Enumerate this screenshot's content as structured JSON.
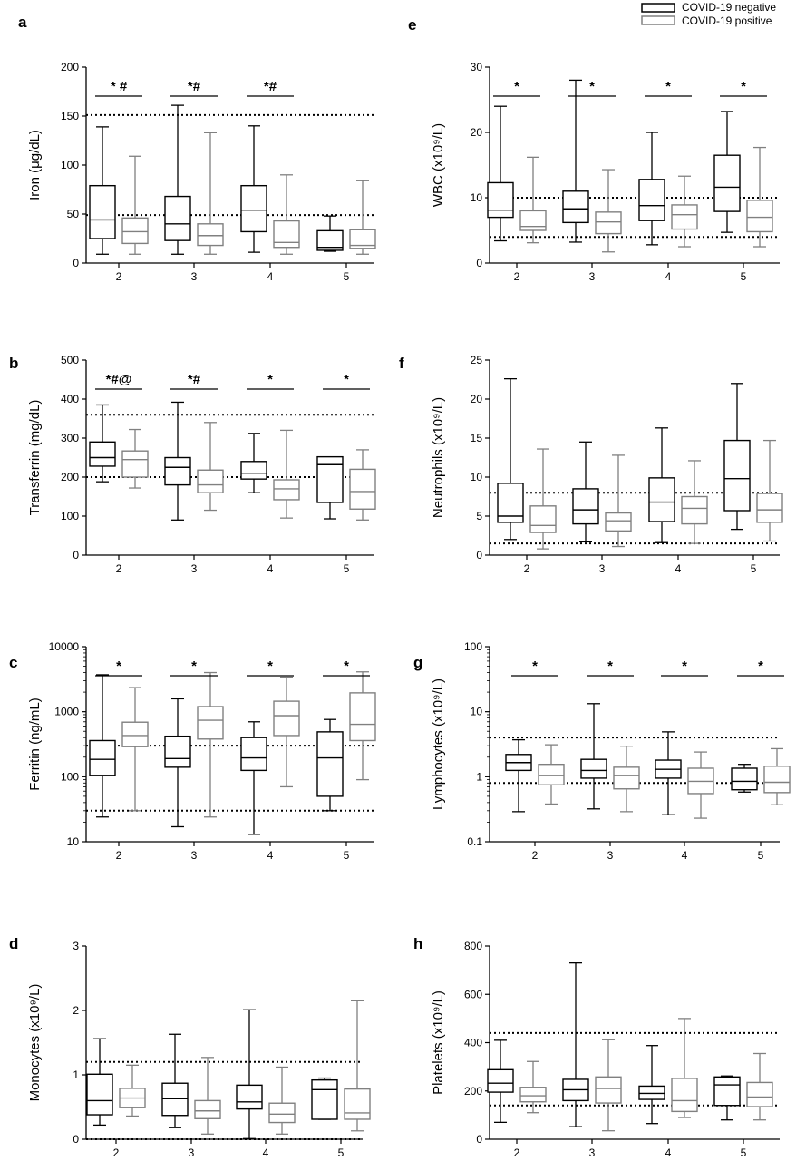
{
  "legend": {
    "entries": [
      {
        "name": "COVID-19 negative",
        "color": "#000000"
      },
      {
        "name": "COVID-19 positive",
        "color": "#808080"
      }
    ],
    "placement": "top-right"
  },
  "chart_data": [
    {
      "panel": "a",
      "type": "box",
      "ylabel": "Iron (μg/dL)",
      "categories": [
        "2",
        "3",
        "4",
        "5"
      ],
      "ylim": [
        0,
        200
      ],
      "yticks": [
        0,
        50,
        100,
        150,
        200
      ],
      "log": false,
      "ref_lines": [
        151,
        49
      ],
      "series": [
        {
          "name": "COVID-19 negative",
          "boxes": [
            [
              9,
              25,
              44,
              79,
              139
            ],
            [
              9,
              23,
              40,
              68,
              161
            ],
            [
              11,
              32,
              54,
              79,
              140
            ],
            [
              12,
              13,
              16,
              33,
              48
            ]
          ]
        },
        {
          "name": "COVID-19 positive",
          "boxes": [
            [
              9,
              20,
              32,
              46,
              109
            ],
            [
              9,
              18,
              28,
              40,
              133
            ],
            [
              9,
              16,
              21,
              43,
              90
            ],
            [
              9,
              15,
              18,
              34,
              84
            ]
          ]
        }
      ],
      "annotations": [
        "* #",
        "*#",
        "*#",
        ""
      ]
    },
    {
      "panel": "b",
      "type": "box",
      "ylabel": "Transferrin (mg/dL)",
      "categories": [
        "2",
        "3",
        "4",
        "5"
      ],
      "ylim": [
        0,
        500
      ],
      "yticks": [
        0,
        100,
        200,
        300,
        400,
        500
      ],
      "log": false,
      "ref_lines": [
        360,
        200
      ],
      "series": [
        {
          "name": "COVID-19 negative",
          "boxes": [
            [
              188,
              228,
              250,
              290,
              385
            ],
            [
              90,
              180,
              225,
              250,
              392
            ],
            [
              160,
              195,
              210,
              240,
              312
            ],
            [
              93,
              135,
              232,
              252,
              252
            ]
          ]
        },
        {
          "name": "COVID-19 positive",
          "boxes": [
            [
              172,
              200,
              245,
              267,
              322
            ],
            [
              115,
              160,
              180,
              218,
              340
            ],
            [
              95,
              142,
              170,
              193,
              320
            ],
            [
              90,
              118,
              163,
              220,
              270
            ]
          ]
        }
      ],
      "annotations": [
        "*#@",
        "*#",
        "*",
        "*"
      ]
    },
    {
      "panel": "c",
      "type": "box",
      "ylabel": "Ferritin (ng/mL)",
      "categories": [
        "2",
        "3",
        "4",
        "5"
      ],
      "ylim": [
        10,
        10000
      ],
      "yticks": [
        10,
        100,
        1000,
        10000
      ],
      "log": true,
      "ref_lines": [
        300,
        30
      ],
      "series": [
        {
          "name": "COVID-19 negative",
          "boxes": [
            [
              24,
              105,
              185,
              360,
              3700
            ],
            [
              17,
              140,
              190,
              420,
              1580
            ],
            [
              13,
              125,
              195,
              400,
              700
            ],
            [
              30,
              50,
              195,
              490,
              760
            ]
          ]
        },
        {
          "name": "COVID-19 positive",
          "boxes": [
            [
              30,
              290,
              430,
              690,
              2350
            ],
            [
              24,
              380,
              740,
              1200,
              4000
            ],
            [
              70,
              430,
              870,
              1450,
              3400
            ],
            [
              90,
              360,
              640,
              1950,
              4100
            ]
          ]
        }
      ],
      "annotations": [
        "*",
        "*",
        "*",
        "*"
      ]
    },
    {
      "panel": "d",
      "type": "box",
      "ylabel": "Monocytes (x10⁹/L)",
      "categories": [
        "2",
        "3",
        "4",
        "5"
      ],
      "ylim": [
        0,
        3
      ],
      "yticks": [
        0,
        1,
        2,
        3
      ],
      "log": false,
      "ref_lines": [
        1.2,
        0
      ],
      "series": [
        {
          "name": "COVID-19 negative",
          "boxes": [
            [
              0.22,
              0.38,
              0.6,
              1.01,
              1.56
            ],
            [
              0.18,
              0.37,
              0.63,
              0.87,
              1.63
            ],
            [
              0.01,
              0.47,
              0.58,
              0.84,
              2.01
            ],
            [
              0.31,
              0.31,
              0.77,
              0.92,
              0.95
            ]
          ]
        },
        {
          "name": "COVID-19 positive",
          "boxes": [
            [
              0.36,
              0.49,
              0.64,
              0.79,
              1.15
            ],
            [
              0.08,
              0.32,
              0.44,
              0.6,
              1.27
            ],
            [
              0.08,
              0.26,
              0.39,
              0.56,
              1.12
            ],
            [
              0.13,
              0.31,
              0.41,
              0.78,
              2.15
            ]
          ]
        }
      ],
      "annotations": [
        "",
        "",
        "",
        ""
      ]
    },
    {
      "panel": "e",
      "type": "box",
      "ylabel": "WBC (x10⁹/L)",
      "categories": [
        "2",
        "3",
        "4",
        "5"
      ],
      "ylim": [
        0,
        30
      ],
      "yticks": [
        0,
        10,
        20,
        30
      ],
      "log": false,
      "ref_lines": [
        10,
        4
      ],
      "series": [
        {
          "name": "COVID-19 negative",
          "boxes": [
            [
              3.4,
              7,
              8.1,
              12.3,
              24
            ],
            [
              3.2,
              6.2,
              8.3,
              11,
              28
            ],
            [
              2.8,
              6.5,
              8.8,
              12.8,
              20
            ],
            [
              4.7,
              7.9,
              11.6,
              16.5,
              23.2
            ]
          ]
        },
        {
          "name": "COVID-19 positive",
          "boxes": [
            [
              3.1,
              5,
              5.6,
              8,
              16.2
            ],
            [
              1.7,
              4.5,
              6.3,
              7.8,
              14.3
            ],
            [
              2.5,
              5.2,
              7.4,
              8.9,
              13.3
            ],
            [
              2.5,
              4.8,
              7,
              9.6,
              17.7
            ]
          ]
        }
      ],
      "annotations": [
        "*",
        "*",
        "*",
        "*"
      ]
    },
    {
      "panel": "f",
      "type": "box",
      "ylabel": "Neutrophils (x10⁹/L)",
      "categories": [
        "2",
        "3",
        "4",
        "5"
      ],
      "ylim": [
        0,
        25
      ],
      "yticks": [
        0,
        5,
        10,
        15,
        20,
        25
      ],
      "log": false,
      "ref_lines": [
        8,
        1.5
      ],
      "series": [
        {
          "name": "COVID-19 negative",
          "boxes": [
            [
              2,
              4.2,
              5,
              9.2,
              22.6
            ],
            [
              1.7,
              4,
              5.8,
              8.5,
              14.5
            ],
            [
              1.6,
              4.3,
              6.8,
              9.9,
              16.3
            ],
            [
              3.3,
              5.7,
              9.8,
              14.7,
              22
            ]
          ]
        },
        {
          "name": "COVID-19 positive",
          "boxes": [
            [
              0.8,
              2.9,
              3.8,
              6.3,
              13.6
            ],
            [
              1.1,
              3.1,
              4.4,
              5.4,
              12.8
            ],
            [
              1.5,
              4,
              6,
              7.5,
              12.1
            ],
            [
              1.8,
              4.2,
              5.8,
              7.9,
              14.7
            ]
          ]
        }
      ],
      "annotations": [
        "",
        "",
        "",
        ""
      ]
    },
    {
      "panel": "g",
      "type": "box",
      "ylabel": "Lymphocytes (x10⁹/L)",
      "categories": [
        "2",
        "3",
        "4",
        "5"
      ],
      "ylim": [
        0.1,
        100
      ],
      "yticks": [
        0.1,
        1,
        10,
        100
      ],
      "log": true,
      "ref_lines": [
        4,
        0.8
      ],
      "series": [
        {
          "name": "COVID-19 negative",
          "boxes": [
            [
              0.29,
              1.25,
              1.65,
              2.2,
              3.7
            ],
            [
              0.32,
              0.95,
              1.25,
              1.85,
              13.3
            ],
            [
              0.26,
              0.95,
              1.3,
              1.8,
              4.9
            ],
            [
              0.58,
              0.63,
              0.85,
              1.35,
              1.55
            ]
          ]
        },
        {
          "name": "COVID-19 positive",
          "boxes": [
            [
              0.38,
              0.75,
              1.05,
              1.55,
              3.1
            ],
            [
              0.29,
              0.65,
              1.05,
              1.4,
              2.95
            ],
            [
              0.23,
              0.55,
              0.85,
              1.35,
              2.4
            ],
            [
              0.37,
              0.57,
              0.82,
              1.45,
              2.7
            ]
          ]
        }
      ],
      "annotations": [
        "*",
        "*",
        "*",
        "*"
      ]
    },
    {
      "panel": "h",
      "type": "box",
      "ylabel": "Platelets (x10⁹/L)",
      "categories": [
        "2",
        "3",
        "4",
        "5"
      ],
      "ylim": [
        0,
        800
      ],
      "yticks": [
        0,
        200,
        400,
        600,
        800
      ],
      "log": false,
      "ref_lines": [
        440,
        140
      ],
      "series": [
        {
          "name": "COVID-19 negative",
          "boxes": [
            [
              70,
              195,
              232,
              288,
              410
            ],
            [
              52,
              160,
              205,
              248,
              730
            ],
            [
              65,
              165,
              190,
              220,
              388
            ],
            [
              80,
              140,
              225,
              258,
              262
            ]
          ]
        },
        {
          "name": "COVID-19 positive",
          "boxes": [
            [
              110,
              155,
              180,
              215,
              322
            ],
            [
              35,
              150,
              210,
              258,
              412
            ],
            [
              90,
              115,
              160,
              252,
              500
            ],
            [
              80,
              135,
              175,
              235,
              355
            ]
          ]
        }
      ],
      "annotations": [
        "",
        "",
        "",
        ""
      ]
    }
  ]
}
